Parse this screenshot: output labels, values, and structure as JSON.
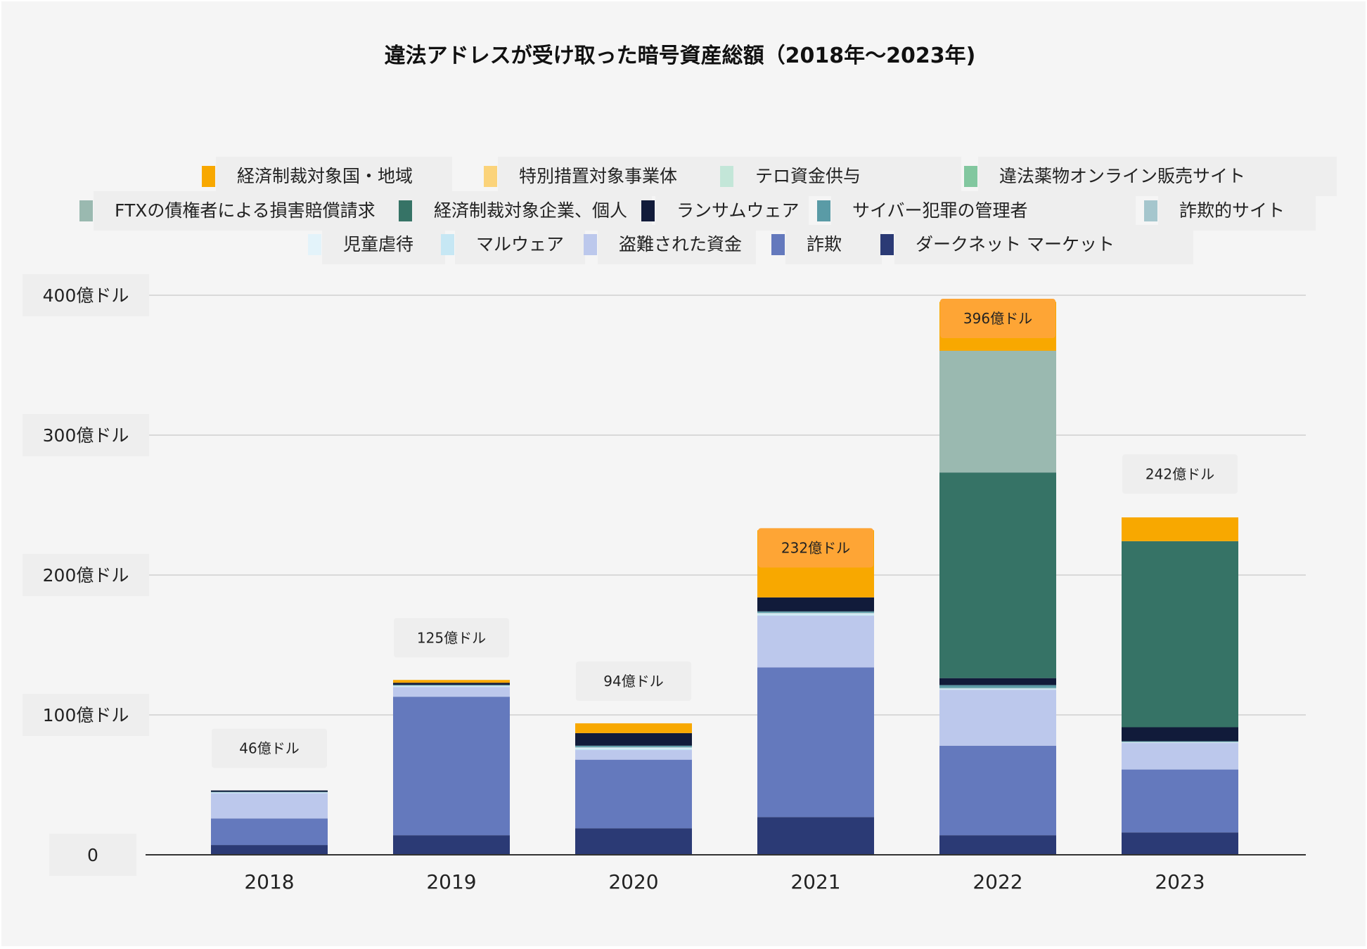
{
  "chart_data": {
    "type": "bar",
    "stacked": true,
    "title": "違法アドレスが受け取った暗号資産総額（2018年〜2023年)",
    "xlabel": "",
    "ylabel": "",
    "unit": "億ドル",
    "ylim": [
      0,
      400
    ],
    "y_ticks": [
      {
        "value": 0,
        "label": "0"
      },
      {
        "value": 100,
        "label": "100億ドル"
      },
      {
        "value": 200,
        "label": "200億ドル"
      },
      {
        "value": 300,
        "label": "300億ドル"
      },
      {
        "value": 400,
        "label": "400億ドル"
      }
    ],
    "grid": true,
    "legend_position": "top",
    "categories": [
      "2018",
      "2019",
      "2020",
      "2021",
      "2022",
      "2023"
    ],
    "totals": [
      46,
      125,
      94,
      232,
      396,
      242
    ],
    "total_labels": [
      "46億ドル",
      "125億ドル",
      "94億ドル",
      "232億ドル",
      "396億ドル",
      "242億ドル"
    ],
    "total_label_highlight": [
      false,
      false,
      false,
      true,
      true,
      false
    ],
    "series": [
      {
        "name": "ダークネット マーケット",
        "color": "#2b3a75",
        "values": [
          7,
          14,
          19,
          27,
          14,
          16
        ]
      },
      {
        "name": "詐欺",
        "color": "#6479bd",
        "values": [
          19,
          99,
          49,
          107,
          64,
          45
        ]
      },
      {
        "name": "盗難された資金",
        "color": "#bcc8ec",
        "values": [
          18,
          7,
          7,
          37,
          40,
          19
        ]
      },
      {
        "name": "マルウェア",
        "color": "#c6e7f4",
        "values": [
          0.5,
          0.5,
          1,
          1,
          0.5,
          0.3
        ]
      },
      {
        "name": "児童虐待",
        "color": "#e3f3fa",
        "values": [
          0.2,
          0.3,
          0.5,
          0.5,
          0.3,
          0.2
        ]
      },
      {
        "name": "詐欺的サイト",
        "color": "#a5c6cd",
        "values": [
          0,
          0.2,
          0.5,
          0.5,
          0.5,
          0.2
        ]
      },
      {
        "name": "サイバー犯罪の管理者",
        "color": "#5a9ba6",
        "values": [
          0.3,
          0.5,
          1,
          1,
          2,
          0.5
        ]
      },
      {
        "name": "ランサムウェア",
        "color": "#111b3a",
        "values": [
          1,
          1.5,
          9,
          10,
          5,
          10
        ]
      },
      {
        "name": "経済制裁対象企業、個人",
        "color": "#367366",
        "values": [
          0,
          0,
          0,
          0,
          147,
          133
        ]
      },
      {
        "name": "FTXの債権者による損害賠償請求",
        "color": "#9ab9b0",
        "values": [
          0,
          0,
          0,
          0,
          87,
          0
        ]
      },
      {
        "name": "違法薬物オンライン販売サイト",
        "color": "#82c79f",
        "values": [
          0,
          0,
          0,
          0,
          0,
          0
        ]
      },
      {
        "name": "テロ資金供与",
        "color": "#c3e6d8",
        "values": [
          0,
          0,
          0,
          0,
          0,
          0
        ]
      },
      {
        "name": "特別措置対象事業体",
        "color": "#fbd37a",
        "values": [
          0,
          0,
          0,
          0,
          0,
          0
        ]
      },
      {
        "name": "経済制裁対象国・地域",
        "color": "#f8a800",
        "values": [
          0,
          2,
          7,
          48,
          35,
          17
        ]
      }
    ],
    "legend_order": [
      "経済制裁対象国・地域",
      "特別措置対象事業体",
      "テロ資金供与",
      "違法薬物オンライン販売サイト",
      "FTXの債権者による損害賠償請求",
      "経済制裁対象企業、個人",
      "ランサムウェア",
      "サイバー犯罪の管理者",
      "詐欺的サイト",
      "児童虐待",
      "マルウェア",
      "盗難された資金",
      "詐欺",
      "ダークネット マーケット"
    ]
  }
}
